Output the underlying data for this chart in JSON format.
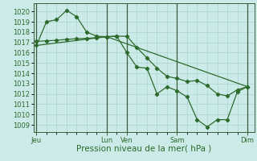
{
  "background_color": "#cceae8",
  "grid_color": "#aad4d0",
  "line_color": "#2d6b2d",
  "marker_color": "#2d6b2d",
  "xlabel": "Pression niveau de la mer( hPa )",
  "xlabel_fontsize": 7.5,
  "ylim": [
    1008.3,
    1020.8
  ],
  "yticks": [
    1009,
    1010,
    1011,
    1012,
    1013,
    1014,
    1015,
    1016,
    1017,
    1018,
    1019,
    1020
  ],
  "day_labels": [
    "Jeu",
    "Lun",
    "Ven",
    "Sam",
    "Dim"
  ],
  "day_positions": [
    0,
    7,
    9,
    14,
    21
  ],
  "xlim": [
    -0.3,
    21.7
  ],
  "series1_x": [
    0,
    1,
    2,
    3,
    4,
    5,
    6,
    7,
    8,
    9,
    10,
    11,
    12,
    13,
    14,
    15,
    16,
    17,
    18,
    19,
    20,
    21
  ],
  "series1_y": [
    1016.7,
    1019.0,
    1019.2,
    1020.1,
    1019.5,
    1018.0,
    1017.6,
    1017.55,
    1017.6,
    1016.0,
    1014.6,
    1014.5,
    1012.0,
    1012.7,
    1012.3,
    1011.7,
    1009.5,
    1008.8,
    1009.5,
    1009.5,
    1012.2,
    1012.7
  ],
  "series2_x": [
    0,
    1,
    2,
    3,
    4,
    5,
    6,
    7,
    8,
    9,
    10,
    11,
    12,
    13,
    14,
    15,
    16,
    17,
    18,
    19,
    20,
    21
  ],
  "series2_y": [
    1017.1,
    1017.15,
    1017.2,
    1017.3,
    1017.35,
    1017.4,
    1017.45,
    1017.55,
    1017.6,
    1017.6,
    1016.5,
    1015.5,
    1014.5,
    1013.7,
    1013.5,
    1013.2,
    1013.3,
    1012.8,
    1012.0,
    1011.8,
    1012.4,
    1012.7
  ],
  "series3_x": [
    0,
    7,
    21
  ],
  "series3_y": [
    1016.7,
    1017.55,
    1012.7
  ],
  "vline_color": "#3a5c3a",
  "tick_fontsize": 6.0,
  "tick_color": "#2d6b2d"
}
